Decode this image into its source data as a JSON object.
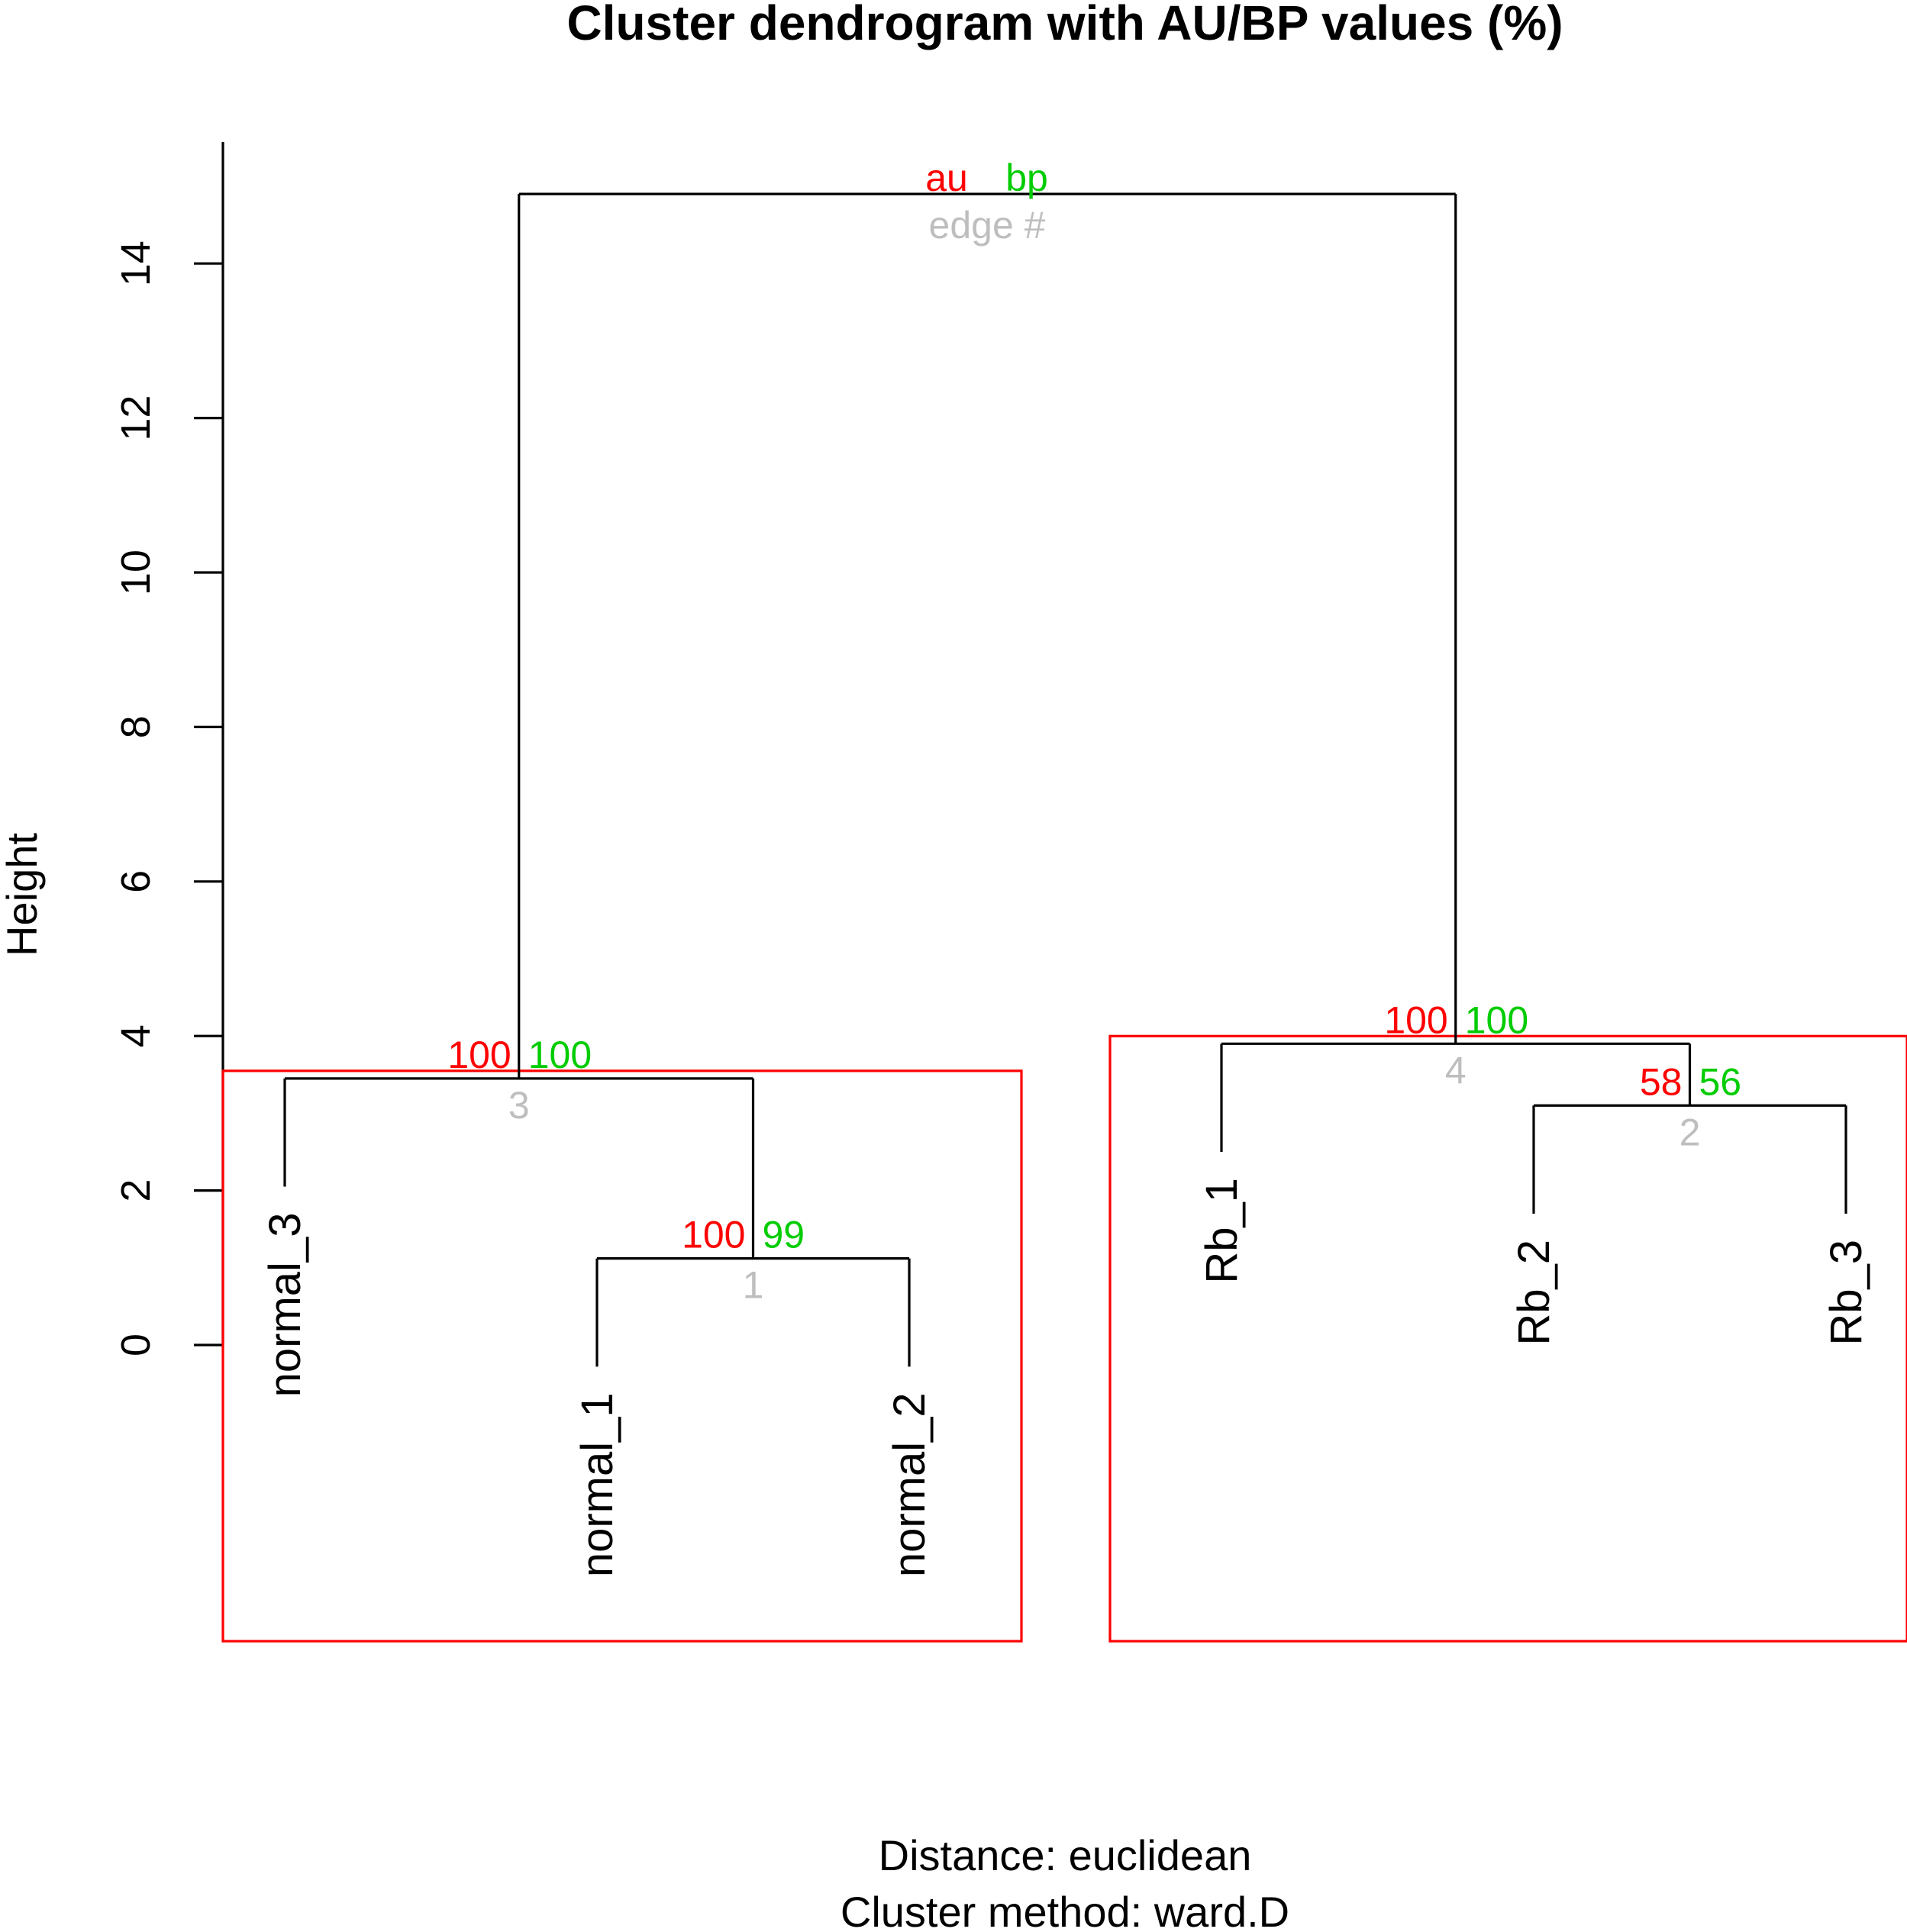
{
  "chart_data": {
    "type": "dendrogram",
    "title": "Cluster dendrogram with AU/BP values (%)",
    "ylabel": "Height",
    "subtitle_lines": [
      "Distance:  euclidean",
      "Cluster method: ward.D"
    ],
    "yticks": [
      0,
      2,
      4,
      6,
      8,
      10,
      12,
      14
    ],
    "ylim": [
      0,
      15.6
    ],
    "leaves": [
      "normal_3",
      "normal_1",
      "normal_2",
      "Rb_1",
      "Rb_2",
      "Rb_3"
    ],
    "merges": [
      {
        "edge": "1",
        "height": 1.12,
        "left": "normal_1",
        "right": "normal_2",
        "au": "100",
        "bp": "99"
      },
      {
        "edge": "2",
        "height": 3.1,
        "left": "Rb_2",
        "right": "Rb_3",
        "au": "58",
        "bp": "56"
      },
      {
        "edge": "3",
        "height": 3.45,
        "left": "normal_3",
        "right": "1",
        "au": "100",
        "bp": "100"
      },
      {
        "edge": "4",
        "height": 3.9,
        "left": "Rb_1",
        "right": "2",
        "au": "100",
        "bp": "100"
      },
      {
        "edge": "",
        "height": 14.9,
        "left": "3",
        "right": "4",
        "au": "",
        "bp": ""
      }
    ],
    "leaf_heights": {
      "normal_3": 2.05,
      "normal_1": -0.28,
      "normal_2": -0.28,
      "Rb_1": 2.5,
      "Rb_2": 1.7,
      "Rb_3": 1.7
    },
    "legend": {
      "au": "au",
      "bp": "bp",
      "edge": "edge #"
    },
    "highlight_clusters": [
      [
        "normal_3",
        "normal_1",
        "normal_2"
      ],
      [
        "Rb_1",
        "Rb_2",
        "Rb_3"
      ]
    ],
    "colors": {
      "au": "#ff0000",
      "bp": "#00cc00",
      "edge": "#bebebe",
      "rect": "#ff0000",
      "line": "#000000"
    }
  }
}
